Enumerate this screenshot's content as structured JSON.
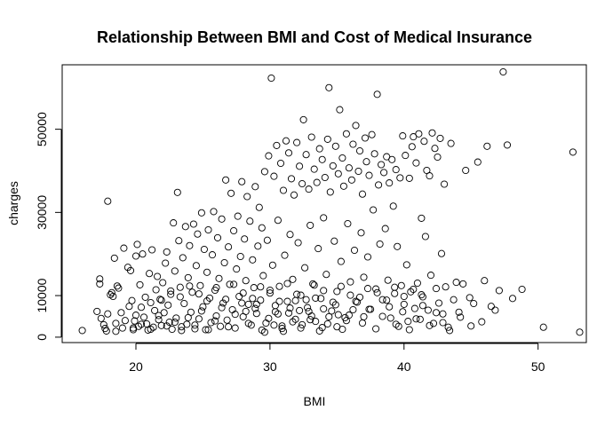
{
  "chart_data": {
    "type": "scatter",
    "title": "Relationship Between BMI and Cost of Medical Insurance",
    "xlabel": "BMI",
    "ylabel": "charges",
    "xlim": [
      14.5,
      53.6
    ],
    "ylim": [
      -1300,
      65500
    ],
    "xticks": [
      20,
      30,
      40,
      50
    ],
    "yticks": [
      0,
      10000,
      30000,
      50000
    ],
    "grid": false,
    "marker": "open-circle",
    "points": [
      [
        16.0,
        1600
      ],
      [
        17.1,
        6200
      ],
      [
        17.3,
        12800
      ],
      [
        17.3,
        14000
      ],
      [
        17.4,
        4500
      ],
      [
        17.6,
        3000
      ],
      [
        17.7,
        2100
      ],
      [
        17.8,
        1500
      ],
      [
        17.9,
        32700
      ],
      [
        17.9,
        5600
      ],
      [
        18.1,
        10200
      ],
      [
        18.2,
        10700
      ],
      [
        18.3,
        9800
      ],
      [
        18.4,
        19000
      ],
      [
        18.5,
        3300
      ],
      [
        18.6,
        12300
      ],
      [
        18.7,
        11800
      ],
      [
        18.9,
        5900
      ],
      [
        19.0,
        2200
      ],
      [
        19.1,
        21400
      ],
      [
        19.2,
        4000
      ],
      [
        19.4,
        16800
      ],
      [
        19.5,
        7400
      ],
      [
        19.6,
        16000
      ],
      [
        19.7,
        8800
      ],
      [
        19.8,
        1800
      ],
      [
        19.9,
        3900
      ],
      [
        20.0,
        19500
      ],
      [
        20.0,
        5300
      ],
      [
        20.1,
        22300
      ],
      [
        20.2,
        2600
      ],
      [
        20.3,
        12600
      ],
      [
        20.4,
        7200
      ],
      [
        20.5,
        20000
      ],
      [
        20.6,
        4800
      ],
      [
        20.7,
        9600
      ],
      [
        20.8,
        3200
      ],
      [
        20.9,
        1700
      ],
      [
        21.0,
        15300
      ],
      [
        21.1,
        8300
      ],
      [
        21.2,
        21000
      ],
      [
        21.3,
        2400
      ],
      [
        21.4,
        6400
      ],
      [
        21.5,
        11400
      ],
      [
        21.6,
        14600
      ],
      [
        21.7,
        4200
      ],
      [
        21.8,
        9100
      ],
      [
        21.9,
        2800
      ],
      [
        22.0,
        13100
      ],
      [
        22.1,
        5900
      ],
      [
        22.2,
        17800
      ],
      [
        22.3,
        20500
      ],
      [
        22.4,
        7700
      ],
      [
        22.5,
        3600
      ],
      [
        22.6,
        10300
      ],
      [
        22.7,
        1900
      ],
      [
        22.8,
        27500
      ],
      [
        22.9,
        15900
      ],
      [
        23.0,
        4600
      ],
      [
        23.1,
        34800
      ],
      [
        23.2,
        23200
      ],
      [
        23.3,
        12000
      ],
      [
        23.4,
        2500
      ],
      [
        23.5,
        19100
      ],
      [
        23.6,
        8100
      ],
      [
        23.7,
        26600
      ],
      [
        23.8,
        3100
      ],
      [
        23.9,
        14300
      ],
      [
        24.0,
        22000
      ],
      [
        24.1,
        6000
      ],
      [
        24.2,
        10800
      ],
      [
        24.3,
        27200
      ],
      [
        24.4,
        2000
      ],
      [
        24.5,
        17200
      ],
      [
        24.6,
        24800
      ],
      [
        24.7,
        4400
      ],
      [
        24.8,
        12400
      ],
      [
        24.9,
        29900
      ],
      [
        25.0,
        7300
      ],
      [
        25.1,
        21100
      ],
      [
        25.2,
        1800
      ],
      [
        25.3,
        15600
      ],
      [
        25.4,
        25800
      ],
      [
        25.5,
        9400
      ],
      [
        25.6,
        3500
      ],
      [
        25.7,
        19800
      ],
      [
        25.8,
        30200
      ],
      [
        25.9,
        11300
      ],
      [
        26.0,
        5100
      ],
      [
        26.1,
        23900
      ],
      [
        26.2,
        14100
      ],
      [
        26.3,
        2600
      ],
      [
        26.4,
        28400
      ],
      [
        26.5,
        8200
      ],
      [
        26.6,
        17900
      ],
      [
        26.7,
        37800
      ],
      [
        26.8,
        4100
      ],
      [
        26.9,
        21700
      ],
      [
        27.0,
        12700
      ],
      [
        27.1,
        34600
      ],
      [
        27.2,
        6600
      ],
      [
        27.3,
        25600
      ],
      [
        27.4,
        2200
      ],
      [
        27.5,
        16400
      ],
      [
        27.6,
        29100
      ],
      [
        27.7,
        9800
      ],
      [
        27.8,
        19400
      ],
      [
        27.9,
        37400
      ],
      [
        28.0,
        4900
      ],
      [
        28.1,
        23600
      ],
      [
        28.2,
        13600
      ],
      [
        28.3,
        33800
      ],
      [
        28.4,
        7900
      ],
      [
        28.5,
        27900
      ],
      [
        28.6,
        2900
      ],
      [
        28.7,
        18600
      ],
      [
        28.8,
        11900
      ],
      [
        28.9,
        36200
      ],
      [
        29.0,
        5700
      ],
      [
        29.1,
        21900
      ],
      [
        29.2,
        31200
      ],
      [
        29.3,
        8900
      ],
      [
        29.4,
        26300
      ],
      [
        29.5,
        14800
      ],
      [
        29.6,
        39800
      ],
      [
        29.7,
        3400
      ],
      [
        29.8,
        23300
      ],
      [
        29.9,
        43600
      ],
      [
        30.0,
        10600
      ],
      [
        30.1,
        62300
      ],
      [
        30.2,
        17300
      ],
      [
        30.3,
        38700
      ],
      [
        30.4,
        6100
      ],
      [
        30.5,
        46100
      ],
      [
        30.6,
        28100
      ],
      [
        30.7,
        12200
      ],
      [
        30.8,
        41800
      ],
      [
        30.9,
        2700
      ],
      [
        31.0,
        35300
      ],
      [
        31.1,
        19700
      ],
      [
        31.2,
        47200
      ],
      [
        31.3,
        8600
      ],
      [
        31.4,
        44300
      ],
      [
        31.5,
        24700
      ],
      [
        31.6,
        38100
      ],
      [
        31.7,
        13900
      ],
      [
        31.8,
        34200
      ],
      [
        31.9,
        4300
      ],
      [
        32.0,
        46800
      ],
      [
        32.1,
        22700
      ],
      [
        32.2,
        41100
      ],
      [
        32.3,
        10100
      ],
      [
        32.4,
        36900
      ],
      [
        32.5,
        52300
      ],
      [
        32.6,
        16700
      ],
      [
        32.7,
        43900
      ],
      [
        32.8,
        7100
      ],
      [
        32.9,
        35600
      ],
      [
        33.0,
        26900
      ],
      [
        33.1,
        48100
      ],
      [
        33.2,
        12800
      ],
      [
        33.3,
        40400
      ],
      [
        33.4,
        3800
      ],
      [
        33.5,
        37200
      ],
      [
        33.6,
        21300
      ],
      [
        33.7,
        45300
      ],
      [
        33.8,
        9300
      ],
      [
        33.9,
        42700
      ],
      [
        34.0,
        28700
      ],
      [
        34.1,
        38400
      ],
      [
        34.2,
        15100
      ],
      [
        34.3,
        47600
      ],
      [
        34.4,
        60000
      ],
      [
        34.5,
        34900
      ],
      [
        34.6,
        6300
      ],
      [
        34.7,
        41200
      ],
      [
        34.8,
        23100
      ],
      [
        34.9,
        45900
      ],
      [
        35.0,
        11000
      ],
      [
        35.1,
        39300
      ],
      [
        35.2,
        54700
      ],
      [
        35.3,
        18200
      ],
      [
        35.4,
        43100
      ],
      [
        35.5,
        36300
      ],
      [
        35.6,
        4700
      ],
      [
        35.7,
        48900
      ],
      [
        35.8,
        27300
      ],
      [
        35.9,
        40700
      ],
      [
        36.0,
        13300
      ],
      [
        36.1,
        37800
      ],
      [
        36.2,
        46400
      ],
      [
        36.3,
        20900
      ],
      [
        36.4,
        50900
      ],
      [
        36.5,
        8400
      ],
      [
        36.6,
        39900
      ],
      [
        36.7,
        44800
      ],
      [
        36.8,
        25100
      ],
      [
        36.9,
        34400
      ],
      [
        37.0,
        14400
      ],
      [
        37.1,
        47900
      ],
      [
        37.2,
        42200
      ],
      [
        37.3,
        19300
      ],
      [
        37.4,
        38900
      ],
      [
        37.5,
        6700
      ],
      [
        37.6,
        48700
      ],
      [
        37.7,
        30600
      ],
      [
        37.8,
        44100
      ],
      [
        37.9,
        11600
      ],
      [
        38.0,
        58400
      ],
      [
        38.1,
        36600
      ],
      [
        38.2,
        22400
      ],
      [
        38.3,
        41500
      ],
      [
        38.4,
        9000
      ],
      [
        38.5,
        39600
      ],
      [
        38.6,
        26100
      ],
      [
        38.7,
        43400
      ],
      [
        38.8,
        13700
      ],
      [
        38.9,
        37100
      ],
      [
        39.0,
        4600
      ],
      [
        39.1,
        42700
      ],
      [
        39.2,
        31500
      ],
      [
        39.3,
        10500
      ],
      [
        39.4,
        40300
      ],
      [
        39.5,
        21800
      ],
      [
        39.6,
        2600
      ],
      [
        39.7,
        38300
      ],
      [
        39.8,
        12400
      ],
      [
        39.9,
        48400
      ],
      [
        40.0,
        7900
      ],
      [
        40.1,
        43700
      ],
      [
        40.2,
        17400
      ],
      [
        40.3,
        3800
      ],
      [
        40.4,
        38200
      ],
      [
        40.5,
        10900
      ],
      [
        40.6,
        45800
      ],
      [
        40.7,
        48200
      ],
      [
        40.8,
        6900
      ],
      [
        40.9,
        41900
      ],
      [
        41.0,
        13000
      ],
      [
        41.1,
        48900
      ],
      [
        41.2,
        4300
      ],
      [
        41.3,
        28600
      ],
      [
        41.4,
        9700
      ],
      [
        41.5,
        47100
      ],
      [
        41.6,
        24200
      ],
      [
        41.7,
        40100
      ],
      [
        41.8,
        6500
      ],
      [
        41.9,
        38800
      ],
      [
        42.0,
        14900
      ],
      [
        42.1,
        49100
      ],
      [
        42.2,
        3300
      ],
      [
        42.3,
        45400
      ],
      [
        42.4,
        11700
      ],
      [
        42.5,
        43300
      ],
      [
        42.6,
        8200
      ],
      [
        42.7,
        47800
      ],
      [
        42.8,
        20100
      ],
      [
        42.9,
        5600
      ],
      [
        43.0,
        36800
      ],
      [
        43.1,
        12100
      ],
      [
        43.3,
        2400
      ],
      [
        43.5,
        46600
      ],
      [
        43.7,
        9000
      ],
      [
        43.9,
        13200
      ],
      [
        44.2,
        4800
      ],
      [
        44.4,
        12800
      ],
      [
        44.6,
        40100
      ],
      [
        44.9,
        9500
      ],
      [
        45.2,
        8100
      ],
      [
        45.5,
        42100
      ],
      [
        45.8,
        3700
      ],
      [
        46.0,
        13600
      ],
      [
        46.2,
        45900
      ],
      [
        46.5,
        7400
      ],
      [
        46.8,
        6500
      ],
      [
        47.1,
        11200
      ],
      [
        47.4,
        63800
      ],
      [
        47.7,
        46200
      ],
      [
        48.1,
        9300
      ],
      [
        48.8,
        11500
      ],
      [
        50.4,
        2400
      ],
      [
        52.6,
        44500
      ],
      [
        53.1,
        1200
      ],
      [
        18.5,
        1400
      ],
      [
        19.8,
        2200
      ],
      [
        20.4,
        3100
      ],
      [
        21.1,
        1900
      ],
      [
        21.7,
        5200
      ],
      [
        22.3,
        2700
      ],
      [
        22.9,
        3600
      ],
      [
        23.4,
        1600
      ],
      [
        23.9,
        4700
      ],
      [
        24.4,
        2900
      ],
      [
        24.9,
        6300
      ],
      [
        25.4,
        1800
      ],
      [
        25.9,
        3900
      ],
      [
        26.4,
        7100
      ],
      [
        26.9,
        2500
      ],
      [
        27.4,
        5500
      ],
      [
        27.9,
        8200
      ],
      [
        28.4,
        3300
      ],
      [
        28.9,
        6900
      ],
      [
        29.4,
        1700
      ],
      [
        29.9,
        4500
      ],
      [
        30.4,
        7600
      ],
      [
        30.9,
        2100
      ],
      [
        31.4,
        5800
      ],
      [
        31.9,
        8800
      ],
      [
        32.4,
        3000
      ],
      [
        32.9,
        6200
      ],
      [
        33.4,
        9400
      ],
      [
        33.9,
        2300
      ],
      [
        34.4,
        4900
      ],
      [
        34.9,
        7800
      ],
      [
        35.4,
        1900
      ],
      [
        35.9,
        5300
      ],
      [
        36.4,
        8600
      ],
      [
        36.9,
        3400
      ],
      [
        37.4,
        6700
      ],
      [
        37.9,
        2000
      ],
      [
        38.4,
        5000
      ],
      [
        38.9,
        7300
      ],
      [
        39.4,
        3100
      ],
      [
        39.9,
        6100
      ],
      [
        40.4,
        1800
      ],
      [
        40.9,
        4400
      ],
      [
        41.4,
        7600
      ],
      [
        41.9,
        2800
      ],
      [
        42.4,
        5900
      ],
      [
        42.9,
        3500
      ],
      [
        43.4,
        1600
      ],
      [
        44.1,
        6000
      ],
      [
        45.0,
        2700
      ],
      [
        21.9,
        8900
      ],
      [
        22.6,
        11100
      ],
      [
        23.3,
        9700
      ],
      [
        24.0,
        12300
      ],
      [
        24.7,
        10400
      ],
      [
        25.3,
        8700
      ],
      [
        26.0,
        11900
      ],
      [
        26.7,
        9100
      ],
      [
        27.3,
        12700
      ],
      [
        28.0,
        10600
      ],
      [
        28.7,
        9300
      ],
      [
        29.3,
        12100
      ],
      [
        30.0,
        11300
      ],
      [
        30.7,
        8600
      ],
      [
        31.3,
        12900
      ],
      [
        32.0,
        10300
      ],
      [
        32.7,
        9000
      ],
      [
        33.3,
        12500
      ],
      [
        34.0,
        11200
      ],
      [
        34.7,
        8400
      ],
      [
        35.3,
        12200
      ],
      [
        36.0,
        10100
      ],
      [
        36.7,
        9600
      ],
      [
        37.3,
        11700
      ],
      [
        38.0,
        10700
      ],
      [
        38.7,
        8900
      ],
      [
        39.3,
        12000
      ],
      [
        40.0,
        9800
      ],
      [
        40.7,
        11500
      ],
      [
        41.3,
        10200
      ],
      [
        29.6,
        1200
      ],
      [
        30.3,
        2900
      ],
      [
        31.0,
        1400
      ],
      [
        31.7,
        3700
      ],
      [
        32.3,
        2200
      ],
      [
        33.0,
        4200
      ],
      [
        33.7,
        1500
      ],
      [
        34.3,
        3200
      ],
      [
        35.0,
        2500
      ],
      [
        35.7,
        4000
      ],
      [
        28.2,
        6200
      ],
      [
        29.0,
        7900
      ],
      [
        30.6,
        5600
      ],
      [
        31.5,
        7000
      ],
      [
        32.2,
        6400
      ],
      [
        33.1,
        5100
      ],
      [
        34.0,
        6800
      ],
      [
        35.1,
        5400
      ],
      [
        36.2,
        6600
      ],
      [
        37.0,
        4900
      ]
    ]
  }
}
